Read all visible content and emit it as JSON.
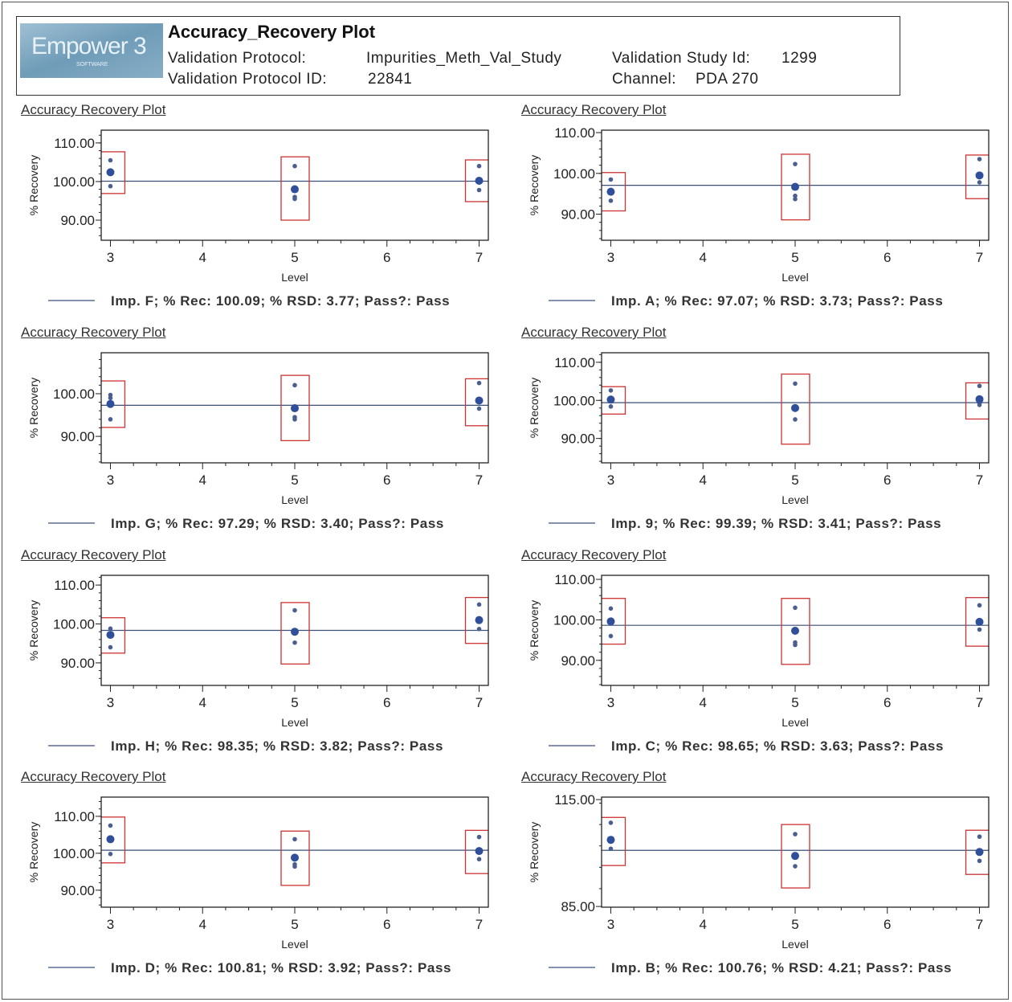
{
  "header": {
    "logo_text": "Empower 3",
    "logo_sub": "SOFTWARE",
    "title": "Accuracy_Recovery Plot",
    "protocol_label": "Validation Protocol:",
    "protocol_value": "Impurities_Meth_Val_Study",
    "protocol_id_label": "Validation Protocol ID:",
    "protocol_id_value": "22841",
    "study_id_label": "Validation Study Id:",
    "study_id_value": "1299",
    "channel_label": "Channel:",
    "channel_value": "PDA 270"
  },
  "colors": {
    "points": "#2f4f9a",
    "mean_line": "#3a4f7a",
    "box": "#cc3333",
    "frame": "#111111"
  },
  "chart_data": [
    {
      "type": "scatter",
      "title": "Accuracy Recovery Plot",
      "xlabel": "Level",
      "ylabel": "% Recovery",
      "xticks": [
        3,
        4,
        5,
        6,
        7
      ],
      "xlim": [
        2.9,
        7.1
      ],
      "ylim": [
        84.8,
        113.3
      ],
      "yticks": [
        90,
        100,
        110
      ],
      "ytick_labels": [
        "90.00",
        "100.00",
        "110.00"
      ],
      "mean_line": 100.09,
      "legend": "Imp. F; % Rec: 100.09; % RSD: 3.77; Pass?: Pass",
      "levels": [
        {
          "x": 3,
          "mean": 102.4,
          "points": [
            105.5,
            98.8
          ],
          "box": [
            96.9,
            107.7
          ]
        },
        {
          "x": 5,
          "mean": 98.0,
          "points": [
            104.0,
            95.5,
            96.0
          ],
          "box": [
            90.0,
            106.4
          ]
        },
        {
          "x": 7,
          "mean": 100.2,
          "points": [
            104.0,
            97.8
          ],
          "box": [
            94.8,
            105.6
          ]
        }
      ]
    },
    {
      "type": "scatter",
      "title": "Accuracy Recovery Plot",
      "xlabel": "Level",
      "ylabel": "% Recovery",
      "xticks": [
        3,
        4,
        5,
        6,
        7
      ],
      "xlim": [
        2.9,
        7.1
      ],
      "ylim": [
        83.6,
        110.6
      ],
      "yticks": [
        90,
        100,
        110
      ],
      "ytick_labels": [
        "90.00",
        "100.00",
        "110.00"
      ],
      "mean_line": 97.07,
      "legend": "Imp. A; % Rec: 97.07; % RSD: 3.73; Pass?: Pass",
      "levels": [
        {
          "x": 3,
          "mean": 95.5,
          "points": [
            98.5,
            93.3
          ],
          "box": [
            90.8,
            100.2
          ]
        },
        {
          "x": 5,
          "mean": 96.7,
          "points": [
            102.3,
            94.5,
            93.7
          ],
          "box": [
            88.6,
            104.7
          ]
        },
        {
          "x": 7,
          "mean": 99.5,
          "points": [
            103.5,
            97.8
          ],
          "box": [
            93.8,
            104.5
          ]
        }
      ]
    },
    {
      "type": "scatter",
      "title": "Accuracy Recovery Plot",
      "xlabel": "Level",
      "ylabel": "% Recovery",
      "xticks": [
        3,
        4,
        5,
        6,
        7
      ],
      "xlim": [
        2.9,
        7.1
      ],
      "ylim": [
        83.8,
        109.6
      ],
      "yticks": [
        90,
        100
      ],
      "ytick_labels": [
        "90.00",
        "100.00"
      ],
      "mean_line": 97.29,
      "legend": "Imp. G; % Rec: 97.29; % RSD: 3.40; Pass?: Pass",
      "levels": [
        {
          "x": 3,
          "mean": 97.6,
          "points": [
            99.7,
            99.0,
            94.0
          ],
          "box": [
            92.1,
            103.0
          ]
        },
        {
          "x": 5,
          "mean": 96.6,
          "points": [
            102.0,
            94.5,
            94.0
          ],
          "box": [
            89.0,
            104.3
          ]
        },
        {
          "x": 7,
          "mean": 98.4,
          "points": [
            102.5,
            96.5
          ],
          "box": [
            92.5,
            103.5
          ]
        }
      ]
    },
    {
      "type": "scatter",
      "title": "Accuracy Recovery Plot",
      "xlabel": "Level",
      "ylabel": "% Recovery",
      "xticks": [
        3,
        4,
        5,
        6,
        7
      ],
      "xlim": [
        2.9,
        7.1
      ],
      "ylim": [
        83.6,
        112.5
      ],
      "yticks": [
        90,
        100,
        110
      ],
      "ytick_labels": [
        "90.00",
        "100.00",
        "110.00"
      ],
      "mean_line": 99.39,
      "legend": "Imp. 9; % Rec: 99.39; % RSD: 3.41; Pass?: Pass",
      "levels": [
        {
          "x": 3,
          "mean": 100.2,
          "points": [
            102.6,
            98.4
          ],
          "box": [
            96.4,
            103.6
          ]
        },
        {
          "x": 5,
          "mean": 98.0,
          "points": [
            104.4,
            95.0
          ],
          "box": [
            88.5,
            106.9
          ]
        },
        {
          "x": 7,
          "mean": 100.3,
          "points": [
            103.8,
            98.8,
            99.2
          ],
          "box": [
            95.1,
            104.6
          ]
        }
      ]
    },
    {
      "type": "scatter",
      "title": "Accuracy Recovery Plot",
      "xlabel": "Level",
      "ylabel": "% Recovery",
      "xticks": [
        3,
        4,
        5,
        6,
        7
      ],
      "xlim": [
        2.9,
        7.1
      ],
      "ylim": [
        84.2,
        112.5
      ],
      "yticks": [
        90,
        100,
        110
      ],
      "ytick_labels": [
        "90.00",
        "100.00",
        "110.00"
      ],
      "mean_line": 98.35,
      "legend": "Imp. H; % Rec: 98.35; % RSD: 3.82; Pass?: Pass",
      "levels": [
        {
          "x": 3,
          "mean": 97.2,
          "points": [
            98.8,
            94.0
          ],
          "box": [
            92.5,
            101.6
          ]
        },
        {
          "x": 5,
          "mean": 98.0,
          "points": [
            103.5,
            95.2
          ],
          "box": [
            89.7,
            105.5
          ]
        },
        {
          "x": 7,
          "mean": 101.0,
          "points": [
            105.0,
            98.7
          ],
          "box": [
            95.0,
            106.8
          ]
        }
      ]
    },
    {
      "type": "scatter",
      "title": "Accuracy Recovery Plot",
      "xlabel": "Level",
      "ylabel": "% Recovery",
      "xticks": [
        3,
        4,
        5,
        6,
        7
      ],
      "xlim": [
        2.9,
        7.1
      ],
      "ylim": [
        83.8,
        111.0
      ],
      "yticks": [
        90,
        100,
        110
      ],
      "ytick_labels": [
        "90.00",
        "100.00",
        "110.00"
      ],
      "mean_line": 98.65,
      "legend": "Imp. C; % Rec: 98.65; % RSD: 3.63; Pass?: Pass",
      "levels": [
        {
          "x": 3,
          "mean": 99.6,
          "points": [
            102.8,
            96.0
          ],
          "box": [
            94.0,
            105.3
          ]
        },
        {
          "x": 5,
          "mean": 97.3,
          "points": [
            103.0,
            94.4,
            93.8
          ],
          "box": [
            89.0,
            105.3
          ]
        },
        {
          "x": 7,
          "mean": 99.5,
          "points": [
            103.6,
            97.6
          ],
          "box": [
            93.5,
            105.5
          ]
        }
      ]
    },
    {
      "type": "scatter",
      "title": "Accuracy Recovery Plot",
      "xlabel": "Level",
      "ylabel": "% Recovery",
      "xticks": [
        3,
        4,
        5,
        6,
        7
      ],
      "xlim": [
        2.9,
        7.1
      ],
      "ylim": [
        85.4,
        115.2
      ],
      "yticks": [
        90,
        100,
        110
      ],
      "ytick_labels": [
        "90.00",
        "100.00",
        "110.00"
      ],
      "mean_line": 100.81,
      "legend": "Imp. D; % Rec: 100.81; % RSD: 3.92; Pass?: Pass",
      "levels": [
        {
          "x": 3,
          "mean": 103.8,
          "points": [
            107.5,
            99.8
          ],
          "box": [
            97.4,
            109.8
          ]
        },
        {
          "x": 5,
          "mean": 98.8,
          "points": [
            103.8,
            96.4,
            97.0
          ],
          "box": [
            91.3,
            106.0
          ]
        },
        {
          "x": 7,
          "mean": 100.6,
          "points": [
            104.4,
            98.4
          ],
          "box": [
            94.5,
            106.2
          ]
        }
      ]
    },
    {
      "type": "scatter",
      "title": "Accuracy Recovery Plot",
      "xlabel": "Level",
      "ylabel": "% Recovery",
      "xticks": [
        3,
        4,
        5,
        6,
        7
      ],
      "xlim": [
        2.9,
        7.1
      ],
      "ylim": [
        84.8,
        115.7
      ],
      "yticks": [
        85,
        115
      ],
      "ytick_labels": [
        "85.00",
        "115.00"
      ],
      "mean_line": 100.76,
      "legend": "Imp. B; % Rec: 100.76; % RSD: 4.21; Pass?: Pass",
      "levels": [
        {
          "x": 3,
          "mean": 103.7,
          "points": [
            108.5,
            101.2
          ],
          "box": [
            96.5,
            110.0
          ]
        },
        {
          "x": 5,
          "mean": 99.2,
          "points": [
            105.3,
            96.3
          ],
          "box": [
            90.2,
            108.0
          ]
        },
        {
          "x": 7,
          "mean": 100.3,
          "points": [
            104.6,
            97.8
          ],
          "box": [
            94.0,
            106.4
          ]
        }
      ]
    }
  ]
}
